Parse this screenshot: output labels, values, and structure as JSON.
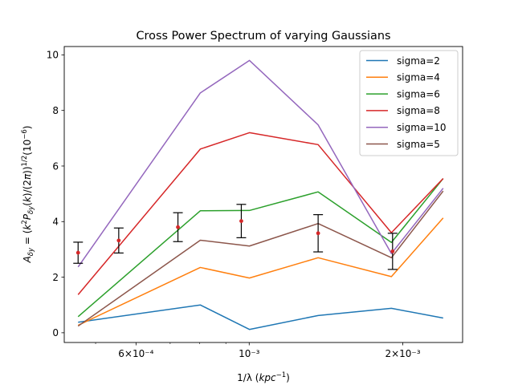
{
  "chart_data": {
    "type": "line",
    "title": "Cross Power Spectrum of varying Gaussians",
    "xlabel": "1/λ (kpc⁻¹)",
    "ylabel": "A_δy = (k²P_δy(k)/(2π))^{1/2} (10⁻⁶)",
    "xscale": "log",
    "xlim": [
      0.000434,
      0.00262
    ],
    "ylim": [
      -0.35,
      10.3
    ],
    "grid": false,
    "legend_location": "upper right",
    "x_ticks_major": [
      {
        "value": 0.0006,
        "label": "6×10⁻⁴"
      },
      {
        "value": 0.001,
        "label": "10⁻³"
      },
      {
        "value": 0.002,
        "label": "2×10⁻³"
      }
    ],
    "x_ticks_minor": [
      0.0005,
      0.0007,
      0.0008,
      0.0009
    ],
    "y_ticks": [
      0,
      2,
      4,
      6,
      8,
      10
    ],
    "x": [
      0.000462,
      0.000555,
      0.000802,
      0.001001,
      0.001365,
      0.0019,
      0.0024
    ],
    "series": [
      {
        "name": "sigma=2",
        "color": "#1f77b4",
        "values": [
          0.38,
          null,
          1.0,
          0.12,
          0.62,
          0.88,
          0.53
        ]
      },
      {
        "name": "sigma=4",
        "color": "#ff7f0e",
        "values": [
          0.27,
          null,
          2.35,
          1.97,
          2.7,
          2.02,
          4.13
        ]
      },
      {
        "name": "sigma=6",
        "color": "#2ca02c",
        "values": [
          0.58,
          null,
          4.39,
          4.4,
          5.07,
          3.25,
          5.55
        ]
      },
      {
        "name": "sigma=8",
        "color": "#d62728",
        "values": [
          1.37,
          null,
          6.61,
          7.2,
          6.77,
          3.6,
          5.55
        ]
      },
      {
        "name": "sigma=10",
        "color": "#9467bd",
        "values": [
          2.37,
          null,
          8.63,
          9.8,
          7.48,
          2.85,
          5.2
        ]
      },
      {
        "name": "sigma=5",
        "color": "#8c564b",
        "values": [
          0.24,
          null,
          3.33,
          3.12,
          3.93,
          2.7,
          5.1
        ]
      }
    ],
    "error_points": {
      "color": "#d62728",
      "x": [
        0.000462,
        0.000555,
        0.000725,
        0.000965,
        0.001365,
        0.00191
      ],
      "y": [
        2.88,
        3.32,
        3.8,
        4.02,
        3.58,
        2.93
      ],
      "yerr_low": [
        0.38,
        0.45,
        0.52,
        0.6,
        0.67,
        0.65
      ],
      "yerr_high": [
        0.38,
        0.45,
        0.52,
        0.6,
        0.67,
        0.65
      ]
    }
  }
}
